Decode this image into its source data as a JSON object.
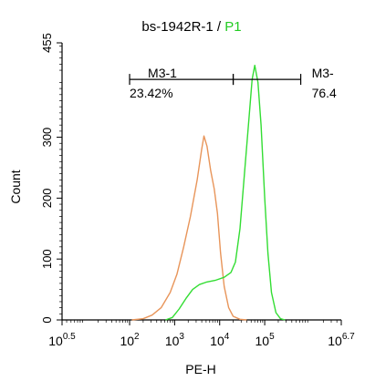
{
  "chart_data": {
    "type": "line",
    "title_main": "bs-1942R-1 / ",
    "title_highlight": "P1",
    "title_highlight_color": "#22cc22",
    "xlabel": "PE-H",
    "ylabel": "Count",
    "x_scale": "log",
    "xlim": [
      0.5,
      6.7
    ],
    "ylim": [
      0,
      455
    ],
    "x_ticks": [
      {
        "base": "10",
        "exp": "0.5",
        "value": 0.5
      },
      {
        "base": "10",
        "exp": "2",
        "value": 2
      },
      {
        "base": "10",
        "exp": "3",
        "value": 3
      },
      {
        "base": "10",
        "exp": "4",
        "value": 4
      },
      {
        "base": "10",
        "exp": "5",
        "value": 5
      },
      {
        "base": "10",
        "exp": "6.7",
        "value": 6.7
      }
    ],
    "y_ticks": [
      "0",
      "100",
      "200",
      "300",
      "455"
    ],
    "y_tick_values": [
      0,
      100,
      200,
      300,
      455
    ],
    "series": [
      {
        "color": "#e8955a",
        "points": [
          [
            2.05,
            0
          ],
          [
            2.3,
            2
          ],
          [
            2.5,
            8
          ],
          [
            2.7,
            20
          ],
          [
            2.9,
            45
          ],
          [
            3.05,
            75
          ],
          [
            3.2,
            120
          ],
          [
            3.35,
            170
          ],
          [
            3.5,
            230
          ],
          [
            3.6,
            280
          ],
          [
            3.65,
            302
          ],
          [
            3.72,
            285
          ],
          [
            3.8,
            245
          ],
          [
            3.88,
            215
          ],
          [
            3.95,
            175
          ],
          [
            4.02,
            110
          ],
          [
            4.1,
            55
          ],
          [
            4.2,
            20
          ],
          [
            4.3,
            6
          ],
          [
            4.45,
            1
          ],
          [
            4.6,
            0
          ]
        ]
      },
      {
        "color": "#33dd33",
        "points": [
          [
            2.8,
            0
          ],
          [
            2.95,
            4
          ],
          [
            3.1,
            18
          ],
          [
            3.25,
            35
          ],
          [
            3.4,
            50
          ],
          [
            3.55,
            58
          ],
          [
            3.7,
            62
          ],
          [
            3.9,
            65
          ],
          [
            4.1,
            70
          ],
          [
            4.25,
            78
          ],
          [
            4.35,
            95
          ],
          [
            4.45,
            150
          ],
          [
            4.55,
            240
          ],
          [
            4.65,
            330
          ],
          [
            4.72,
            395
          ],
          [
            4.78,
            418
          ],
          [
            4.85,
            390
          ],
          [
            4.92,
            320
          ],
          [
            5.0,
            200
          ],
          [
            5.07,
            110
          ],
          [
            5.15,
            45
          ],
          [
            5.25,
            12
          ],
          [
            5.35,
            2
          ],
          [
            5.45,
            0
          ]
        ]
      }
    ],
    "gates": [
      {
        "label": "M3-1",
        "value": "23.42%",
        "x_start": 2.0,
        "x_end": 4.3,
        "y": 395
      },
      {
        "label": "M3-",
        "value": "76.4",
        "x_start": 4.3,
        "x_end": 5.8,
        "y": 395
      }
    ]
  }
}
